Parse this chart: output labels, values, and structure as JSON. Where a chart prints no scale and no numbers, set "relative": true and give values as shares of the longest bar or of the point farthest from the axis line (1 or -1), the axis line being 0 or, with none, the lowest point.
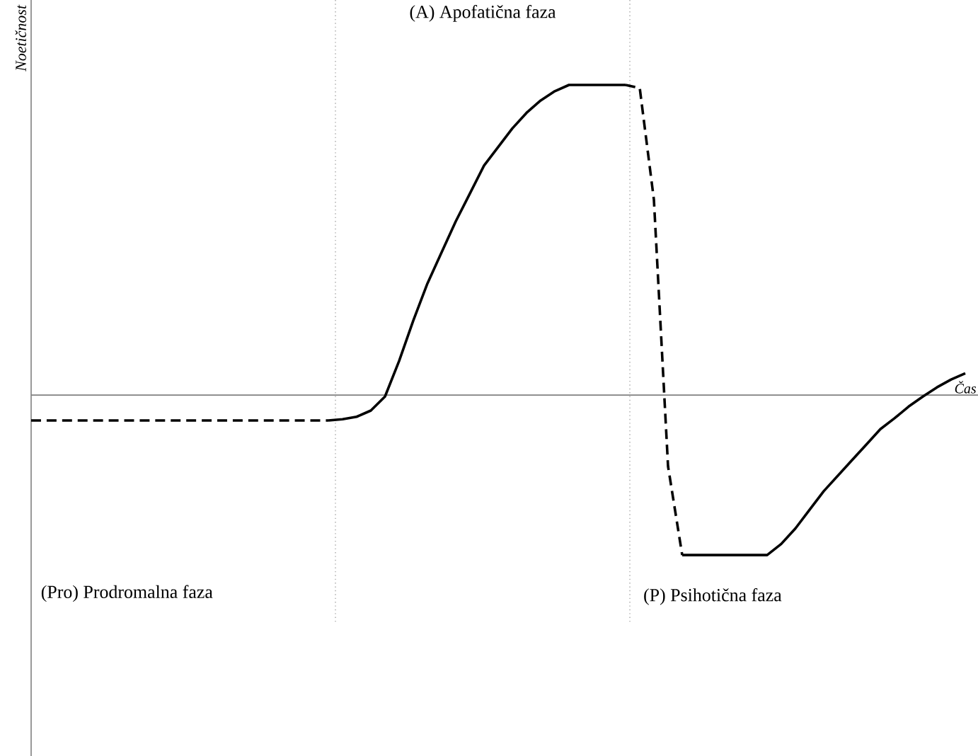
{
  "chart_data": {
    "type": "line",
    "relative": true,
    "xlabel": "Čas",
    "ylabel": "Noetičnost",
    "tick_labels": false,
    "marker": "none",
    "categories": [
      null,
      null,
      null,
      null,
      null,
      null,
      null,
      null,
      null,
      null,
      null,
      null,
      null,
      null,
      null,
      null,
      null,
      null,
      null,
      null,
      null,
      null,
      null,
      null,
      null,
      null,
      null,
      null,
      null,
      null,
      null,
      null,
      null,
      null,
      null,
      null,
      null,
      null,
      null,
      null,
      null,
      null,
      null,
      null,
      null,
      null,
      null,
      null,
      null,
      null,
      null,
      null,
      null,
      null,
      null,
      null,
      null,
      null,
      null,
      null,
      null,
      null,
      null,
      null,
      null,
      null,
      null
    ],
    "series": [
      {
        "color": "#000000",
        "line_style": "dashed",
        "values": [
          -0.082,
          -0.082,
          -0.082,
          -0.082,
          -0.082,
          -0.082,
          -0.082,
          -0.082,
          -0.082,
          -0.082,
          -0.082,
          -0.082,
          -0.082,
          -0.082,
          -0.082,
          -0.082,
          -0.082,
          -0.082,
          -0.082,
          -0.082,
          -0.082,
          -0.082,
          null,
          null,
          null,
          null,
          null,
          null,
          null,
          null,
          null,
          null,
          null,
          null,
          null,
          null,
          null,
          null,
          null,
          null,
          null,
          null,
          null,
          null,
          null,
          null,
          null,
          null,
          null,
          null,
          null,
          null,
          null,
          null,
          null,
          null,
          null,
          null,
          null,
          null,
          null,
          null,
          null,
          null,
          null,
          null,
          null
        ]
      },
      {
        "color": "#000000",
        "line_style": "solid",
        "values": [
          null,
          null,
          null,
          null,
          null,
          null,
          null,
          null,
          null,
          null,
          null,
          null,
          null,
          null,
          null,
          null,
          null,
          null,
          null,
          null,
          null,
          -0.082,
          -0.078,
          -0.07,
          -0.05,
          -0.005,
          0.11,
          0.24,
          0.36,
          0.46,
          0.56,
          0.65,
          0.74,
          0.8,
          0.86,
          0.91,
          0.95,
          0.98,
          1,
          1,
          1,
          1,
          1,
          null,
          null,
          null,
          null,
          null,
          null,
          null,
          null,
          null,
          null,
          null,
          null,
          null,
          null,
          null,
          null,
          null,
          null,
          null,
          null,
          null,
          null,
          null,
          null
        ]
      },
      {
        "color": "#000000",
        "line_style": "dashed",
        "values": [
          null,
          null,
          null,
          null,
          null,
          null,
          null,
          null,
          null,
          null,
          null,
          null,
          null,
          null,
          null,
          null,
          null,
          null,
          null,
          null,
          null,
          null,
          null,
          null,
          null,
          null,
          null,
          null,
          null,
          null,
          null,
          null,
          null,
          null,
          null,
          null,
          null,
          null,
          null,
          null,
          null,
          null,
          1,
          0.99,
          0.63,
          -0.23,
          -0.516,
          null,
          null,
          null,
          null,
          null,
          null,
          null,
          null,
          null,
          null,
          null,
          null,
          null,
          null,
          null,
          null,
          null,
          null,
          null,
          null
        ]
      },
      {
        "color": "#000000",
        "line_style": "solid",
        "values": [
          null,
          null,
          null,
          null,
          null,
          null,
          null,
          null,
          null,
          null,
          null,
          null,
          null,
          null,
          null,
          null,
          null,
          null,
          null,
          null,
          null,
          null,
          null,
          null,
          null,
          null,
          null,
          null,
          null,
          null,
          null,
          null,
          null,
          null,
          null,
          null,
          null,
          null,
          null,
          null,
          null,
          null,
          null,
          null,
          null,
          null,
          -0.516,
          -0.516,
          -0.516,
          -0.516,
          -0.516,
          -0.516,
          -0.516,
          -0.48,
          -0.43,
          -0.37,
          -0.31,
          -0.26,
          -0.21,
          -0.16,
          -0.11,
          -0.075,
          -0.037,
          -0.005,
          0.025,
          0.05,
          0.07
        ]
      }
    ],
    "annotations": [
      "(A) Apofatična faza",
      "(Pro) Prodromalna faza",
      "(P) Psihotična faza"
    ]
  }
}
